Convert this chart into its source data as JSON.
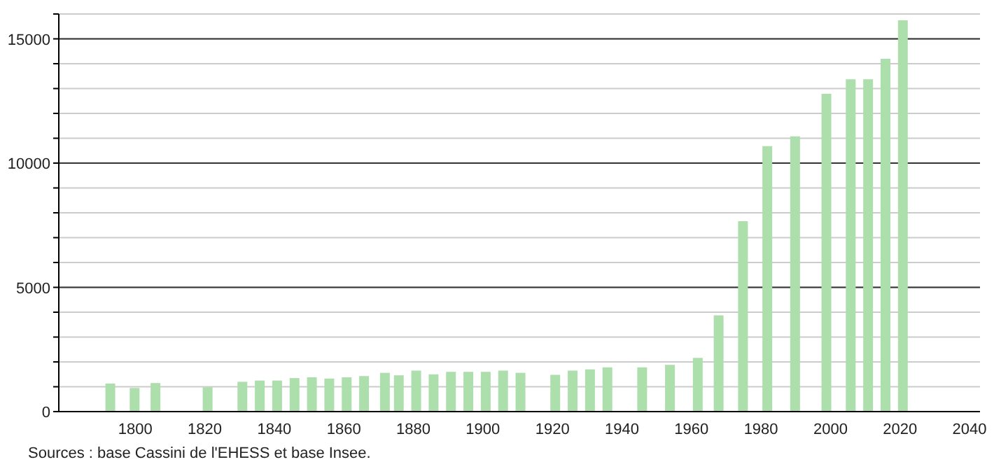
{
  "chart_data": {
    "type": "bar",
    "x": [
      1793,
      1800,
      1806,
      1821,
      1831,
      1836,
      1841,
      1846,
      1851,
      1856,
      1861,
      1866,
      1872,
      1876,
      1881,
      1886,
      1891,
      1896,
      1901,
      1906,
      1911,
      1921,
      1926,
      1931,
      1936,
      1946,
      1954,
      1962,
      1968,
      1975,
      1982,
      1990,
      1999,
      2006,
      2011,
      2016,
      2021
    ],
    "values": [
      1130,
      950,
      1150,
      980,
      1200,
      1250,
      1250,
      1350,
      1380,
      1330,
      1380,
      1430,
      1560,
      1460,
      1650,
      1500,
      1600,
      1600,
      1600,
      1650,
      1560,
      1480,
      1650,
      1700,
      1780,
      1780,
      1880,
      2160,
      3870,
      7660,
      10680,
      11080,
      12790,
      13370,
      13370,
      14200,
      15750
    ],
    "color": "#addfad",
    "xlim": [
      1778,
      2043
    ],
    "xticks": [
      1800,
      1820,
      1840,
      1860,
      1880,
      1900,
      1920,
      1940,
      1960,
      1980,
      2000,
      2020,
      2040
    ],
    "ylim": [
      0,
      16000
    ],
    "yticks": [
      0,
      {
        "value": 1000,
        "label": null
      },
      {
        "value": 2000,
        "label": null
      },
      {
        "value": 3000,
        "label": null
      },
      {
        "value": 4000,
        "label": null
      },
      5000,
      {
        "value": 6000,
        "label": null
      },
      {
        "value": 7000,
        "label": null
      },
      {
        "value": 8000,
        "label": null
      },
      {
        "value": 9000,
        "label": null
      },
      10000,
      {
        "value": 11000,
        "label": null
      },
      {
        "value": 12000,
        "label": null
      },
      {
        "value": 13000,
        "label": null
      },
      {
        "value": 14000,
        "label": null
      },
      15000,
      {
        "value": 16000,
        "label": null
      }
    ],
    "grid": "y",
    "annotations": [
      "Sources : base Cassini de l'EHESS et base Insee."
    ]
  }
}
